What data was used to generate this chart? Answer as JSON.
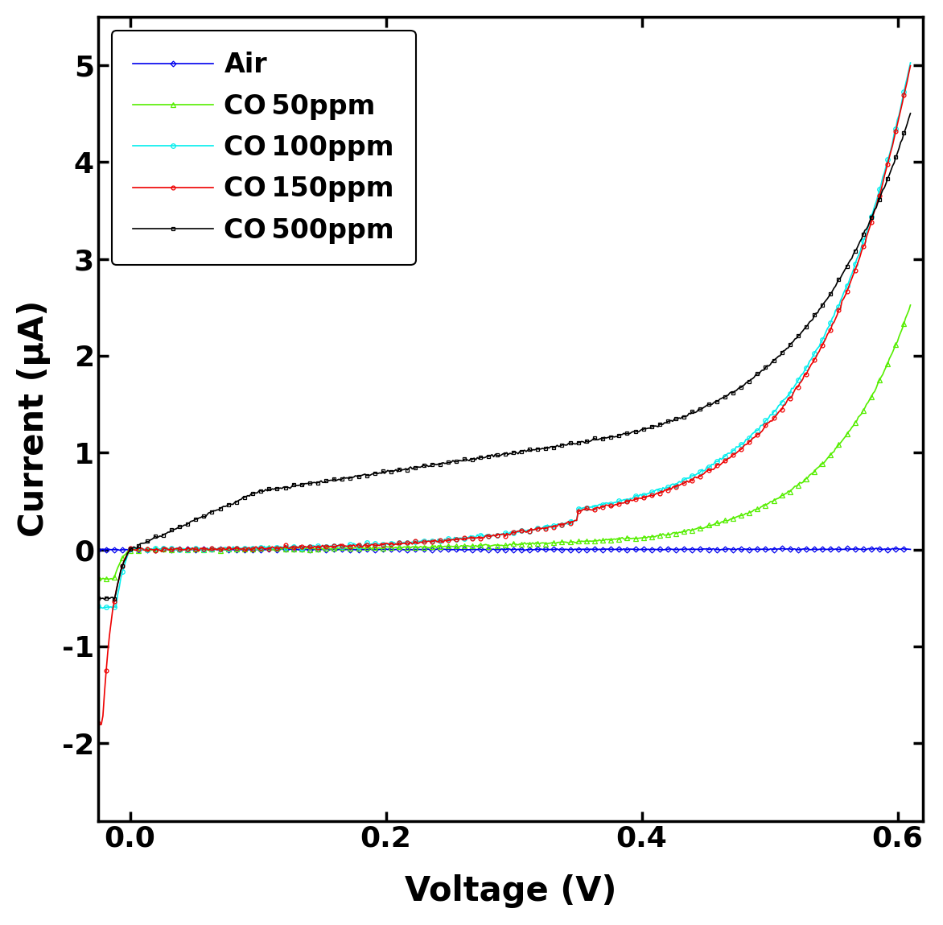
{
  "title": "",
  "xlabel": "Voltage (V)",
  "ylabel": "Current (μA)",
  "xlim": [
    -0.025,
    0.62
  ],
  "ylim": [
    -2.8,
    5.5
  ],
  "xticks": [
    0.0,
    0.2,
    0.4,
    0.6
  ],
  "yticks": [
    -2,
    -1,
    0,
    1,
    2,
    3,
    4,
    5
  ],
  "series": [
    {
      "label": "Air",
      "color": "#0000ee",
      "marker": "D",
      "markersize": 3.5,
      "linestyle": "-"
    },
    {
      "label": "CO 50ppm",
      "color": "#55ee00",
      "marker": "^",
      "markersize": 4,
      "linestyle": "-"
    },
    {
      "label": "CO 100ppm",
      "color": "#00eeee",
      "marker": "o",
      "markersize": 4,
      "linestyle": "-"
    },
    {
      "label": "CO 150ppm",
      "color": "#ee0000",
      "marker": "o",
      "markersize": 3.5,
      "linestyle": "-"
    },
    {
      "label": "CO 500ppm",
      "color": "#000000",
      "marker": "s",
      "markersize": 3.5,
      "linestyle": "-"
    }
  ],
  "figsize": [
    11.72,
    11.49
  ],
  "dpi": 100
}
